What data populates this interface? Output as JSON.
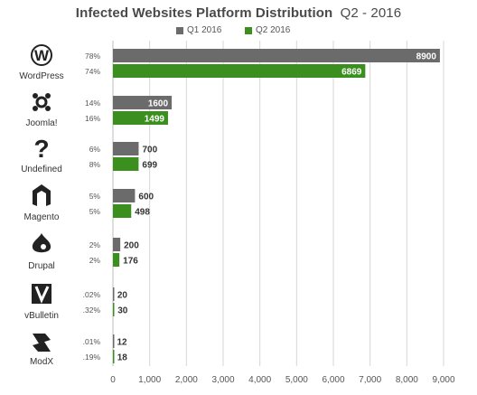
{
  "title": {
    "strong": "Infected Websites Platform Distribution",
    "light": "Q2 - 2016"
  },
  "legend": [
    {
      "label": "Q1 2016",
      "color": "#6b6b6b"
    },
    {
      "label": "Q2 2016",
      "color": "#3b8f1e"
    }
  ],
  "chart_data": {
    "type": "bar",
    "orientation": "horizontal",
    "title": "Infected Websites Platform Distribution Q2 - 2016",
    "categories": [
      "WordPress",
      "Joomla!",
      "Undefined",
      "Magento",
      "Drupal",
      "vBulletin",
      "ModX"
    ],
    "icons": [
      "wordpress-icon",
      "joomla-icon",
      "question-mark-icon",
      "magento-icon",
      "drupal-icon",
      "vbulletin-icon",
      "modx-icon"
    ],
    "series": [
      {
        "name": "Q1 2016",
        "color": "#6b6b6b",
        "values": [
          8900,
          1600,
          700,
          600,
          200,
          20,
          12
        ],
        "percents": [
          "78%",
          "14%",
          "6%",
          "5%",
          "2%",
          ".02%",
          ".01%"
        ]
      },
      {
        "name": "Q2 2016",
        "color": "#3b8f1e",
        "values": [
          6869,
          1499,
          699,
          498,
          176,
          30,
          18
        ],
        "percents": [
          "74%",
          "16%",
          "8%",
          "5%",
          "2%",
          ".32%",
          ".19%"
        ]
      }
    ],
    "xlim": [
      0,
      9000
    ],
    "xticks": [
      "0",
      "1,000",
      "2,000",
      "3,000",
      "4,000",
      "5,000",
      "6,000",
      "7,000",
      "8,000",
      "9,000"
    ],
    "grid": true,
    "legend_position": "top-center"
  }
}
